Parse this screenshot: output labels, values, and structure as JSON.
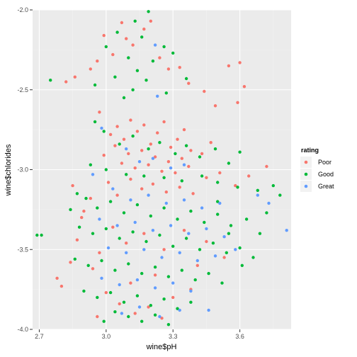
{
  "chart_data": {
    "type": "scatter",
    "xlabel": "wine$pH",
    "ylabel": "wine$chlorides",
    "xlim": [
      2.67,
      3.83
    ],
    "ylim": [
      -4.0,
      -2.0
    ],
    "x_ticks": [
      2.7,
      3.0,
      3.3,
      3.6
    ],
    "x_tick_labels": [
      "2.7",
      "3.0",
      "3.3",
      "3.6"
    ],
    "y_ticks": [
      -4.0,
      -3.5,
      -3.0,
      -2.5,
      -2.0
    ],
    "y_tick_labels": [
      "-4.0",
      "-3.5",
      "-3.0",
      "-2.5",
      "-2.0"
    ],
    "grid": true,
    "legend_placement": "right",
    "legend": {
      "title": "rating",
      "entries": [
        "Poor",
        "Good",
        "Great"
      ]
    },
    "colors": {
      "Poor": "#F8766D",
      "Good": "#00BA38",
      "Great": "#619CFF",
      "panel": "#EBEBEB",
      "grid_major": "#FFFFFF"
    },
    "series": [
      {
        "name": "Poor",
        "points": [
          [
            2.82,
            -2.45
          ],
          [
            2.86,
            -2.42
          ],
          [
            2.93,
            -2.37
          ],
          [
            2.96,
            -2.32
          ],
          [
            2.99,
            -2.16
          ],
          [
            3.03,
            -2.28
          ],
          [
            3.07,
            -2.08
          ],
          [
            3.09,
            -2.18
          ],
          [
            3.12,
            -2.22
          ],
          [
            3.17,
            -2.12
          ],
          [
            3.2,
            -2.07
          ],
          [
            3.24,
            -2.3
          ],
          [
            3.28,
            -2.37
          ],
          [
            3.33,
            -2.36
          ],
          [
            3.37,
            -2.46
          ],
          [
            3.44,
            -2.51
          ],
          [
            3.49,
            -2.6
          ],
          [
            3.55,
            -2.35
          ],
          [
            3.59,
            -2.58
          ],
          [
            3.62,
            -2.48
          ],
          [
            3.6,
            -2.33
          ],
          [
            2.97,
            -2.64
          ],
          [
            3.02,
            -2.78
          ],
          [
            3.05,
            -2.73
          ],
          [
            3.08,
            -2.81
          ],
          [
            3.11,
            -2.69
          ],
          [
            3.14,
            -2.76
          ],
          [
            3.17,
            -2.72
          ],
          [
            3.2,
            -2.84
          ],
          [
            3.23,
            -2.77
          ],
          [
            3.26,
            -2.7
          ],
          [
            3.29,
            -2.86
          ],
          [
            3.32,
            -2.81
          ],
          [
            3.35,
            -2.75
          ],
          [
            3.38,
            -2.88
          ],
          [
            3.04,
            -2.85
          ],
          [
            3.1,
            -2.9
          ],
          [
            3.16,
            -2.88
          ],
          [
            3.22,
            -2.92
          ],
          [
            3.28,
            -2.95
          ],
          [
            3.34,
            -2.93
          ],
          [
            2.99,
            -2.91
          ],
          [
            3.07,
            -2.96
          ],
          [
            3.13,
            -2.99
          ],
          [
            3.19,
            -2.97
          ],
          [
            3.25,
            -3.01
          ],
          [
            3.31,
            -3.02
          ],
          [
            3.37,
            -2.98
          ],
          [
            3.43,
            -2.9
          ],
          [
            3.47,
            -2.83
          ],
          [
            2.85,
            -3.1
          ],
          [
            2.9,
            -3.26
          ],
          [
            2.93,
            -3.18
          ],
          [
            3.01,
            -3.08
          ],
          [
            3.05,
            -3.16
          ],
          [
            3.11,
            -3.06
          ],
          [
            3.16,
            -3.12
          ],
          [
            3.21,
            -3.09
          ],
          [
            3.27,
            -3.14
          ],
          [
            3.33,
            -3.11
          ],
          [
            3.39,
            -3.15
          ],
          [
            3.45,
            -3.05
          ],
          [
            3.51,
            -3.02
          ],
          [
            3.58,
            -3.1
          ],
          [
            3.64,
            -3.04
          ],
          [
            3.72,
            -2.98
          ],
          [
            2.78,
            -3.68
          ],
          [
            2.8,
            -3.73
          ],
          [
            2.84,
            -3.58
          ],
          [
            2.87,
            -3.44
          ],
          [
            2.89,
            -3.3
          ],
          [
            2.94,
            -3.62
          ],
          [
            2.97,
            -3.52
          ],
          [
            3.03,
            -3.36
          ],
          [
            3.09,
            -3.46
          ],
          [
            3.17,
            -3.4
          ],
          [
            3.26,
            -3.5
          ],
          [
            3.35,
            -3.38
          ],
          [
            3.45,
            -3.45
          ],
          [
            3.53,
            -3.55
          ],
          [
            3.41,
            -3.6
          ],
          [
            3.0,
            -3.77
          ],
          [
            3.06,
            -3.84
          ],
          [
            3.13,
            -3.9
          ],
          [
            3.19,
            -3.86
          ],
          [
            3.25,
            -3.93
          ],
          [
            3.3,
            -3.8
          ],
          [
            2.96,
            -3.92
          ],
          [
            3.11,
            -3.71
          ],
          [
            3.22,
            -3.66
          ],
          [
            3.38,
            -3.75
          ]
        ]
      },
      {
        "name": "Good",
        "points": [
          [
            2.75,
            -2.44
          ],
          [
            2.71,
            -3.41
          ],
          [
            2.69,
            -3.41
          ],
          [
            3.0,
            -2.23
          ],
          [
            3.05,
            -2.14
          ],
          [
            3.1,
            -2.3
          ],
          [
            3.13,
            -2.07
          ],
          [
            3.16,
            -2.17
          ],
          [
            3.19,
            -2.01
          ],
          [
            3.26,
            -2.23
          ],
          [
            3.21,
            -2.32
          ],
          [
            3.14,
            -2.38
          ],
          [
            3.04,
            -2.42
          ],
          [
            3.3,
            -2.27
          ],
          [
            3.12,
            -2.5
          ],
          [
            2.95,
            -2.47
          ],
          [
            3.36,
            -2.43
          ],
          [
            3.18,
            -2.44
          ],
          [
            3.08,
            -2.55
          ],
          [
            3.27,
            -2.52
          ],
          [
            2.95,
            -2.7
          ],
          [
            2.99,
            -2.76
          ],
          [
            3.06,
            -2.84
          ],
          [
            3.12,
            -2.79
          ],
          [
            3.19,
            -2.87
          ],
          [
            3.24,
            -2.83
          ],
          [
            3.31,
            -2.9
          ],
          [
            3.36,
            -2.85
          ],
          [
            3.42,
            -2.92
          ],
          [
            3.49,
            -2.87
          ],
          [
            3.55,
            -2.96
          ],
          [
            3.6,
            -2.89
          ],
          [
            2.93,
            -2.97
          ],
          [
            3.0,
            -3.0
          ],
          [
            3.09,
            -3.03
          ],
          [
            3.17,
            -3.04
          ],
          [
            3.26,
            -3.05
          ],
          [
            3.34,
            -3.07
          ],
          [
            3.43,
            -3.04
          ],
          [
            3.5,
            -3.08
          ],
          [
            3.59,
            -3.11
          ],
          [
            3.68,
            -3.13
          ],
          [
            3.75,
            -3.1
          ],
          [
            2.91,
            -3.18
          ],
          [
            2.96,
            -3.24
          ],
          [
            3.02,
            -3.2
          ],
          [
            3.08,
            -3.27
          ],
          [
            3.14,
            -3.22
          ],
          [
            3.2,
            -3.29
          ],
          [
            3.26,
            -3.24
          ],
          [
            3.32,
            -3.31
          ],
          [
            3.38,
            -3.26
          ],
          [
            3.44,
            -3.33
          ],
          [
            3.5,
            -3.28
          ],
          [
            3.56,
            -3.35
          ],
          [
            3.63,
            -3.31
          ],
          [
            2.88,
            -3.36
          ],
          [
            2.94,
            -3.4
          ],
          [
            3.0,
            -3.37
          ],
          [
            3.06,
            -3.43
          ],
          [
            3.12,
            -3.39
          ],
          [
            3.18,
            -3.45
          ],
          [
            3.24,
            -3.41
          ],
          [
            3.3,
            -3.48
          ],
          [
            3.36,
            -3.43
          ],
          [
            3.42,
            -3.5
          ],
          [
            3.48,
            -3.46
          ],
          [
            3.54,
            -3.52
          ],
          [
            3.6,
            -3.49
          ],
          [
            3.66,
            -3.55
          ],
          [
            2.86,
            -3.56
          ],
          [
            2.92,
            -3.6
          ],
          [
            2.98,
            -3.57
          ],
          [
            3.04,
            -3.63
          ],
          [
            3.1,
            -3.59
          ],
          [
            3.16,
            -3.65
          ],
          [
            3.22,
            -3.61
          ],
          [
            3.28,
            -3.67
          ],
          [
            3.34,
            -3.63
          ],
          [
            3.4,
            -3.69
          ],
          [
            3.46,
            -3.65
          ],
          [
            3.52,
            -3.71
          ],
          [
            2.9,
            -3.76
          ],
          [
            2.96,
            -3.8
          ],
          [
            3.02,
            -3.77
          ],
          [
            3.08,
            -3.83
          ],
          [
            3.14,
            -3.79
          ],
          [
            3.2,
            -3.85
          ],
          [
            3.26,
            -3.81
          ],
          [
            3.32,
            -3.87
          ],
          [
            3.38,
            -3.83
          ],
          [
            3.04,
            -3.89
          ],
          [
            3.1,
            -3.92
          ],
          [
            3.16,
            -3.95
          ],
          [
            3.22,
            -3.91
          ],
          [
            3.28,
            -3.97
          ],
          [
            2.99,
            -3.95
          ],
          [
            2.84,
            -3.25
          ],
          [
            2.87,
            -3.15
          ],
          [
            3.5,
            -3.2
          ],
          [
            3.55,
            -3.4
          ],
          [
            3.61,
            -3.6
          ],
          [
            3.69,
            -3.4
          ],
          [
            3.72,
            -3.27
          ],
          [
            3.78,
            -3.16
          ]
        ]
      },
      {
        "name": "Great",
        "points": [
          [
            2.98,
            -2.74
          ],
          [
            3.22,
            -2.22
          ],
          [
            3.23,
            -2.54
          ],
          [
            3.09,
            -2.87
          ],
          [
            3.15,
            -2.95
          ],
          [
            3.21,
            -2.93
          ],
          [
            3.29,
            -2.99
          ],
          [
            3.35,
            -2.97
          ],
          [
            2.94,
            -3.03
          ],
          [
            3.03,
            -3.12
          ],
          [
            3.11,
            -3.19
          ],
          [
            3.19,
            -3.16
          ],
          [
            3.27,
            -3.21
          ],
          [
            3.35,
            -3.19
          ],
          [
            3.43,
            -3.24
          ],
          [
            3.51,
            -3.21
          ],
          [
            2.97,
            -3.31
          ],
          [
            3.05,
            -3.35
          ],
          [
            3.13,
            -3.33
          ],
          [
            3.21,
            -3.38
          ],
          [
            3.29,
            -3.35
          ],
          [
            3.37,
            -3.4
          ],
          [
            3.45,
            -3.37
          ],
          [
            3.53,
            -3.42
          ],
          [
            3.01,
            -3.49
          ],
          [
            3.09,
            -3.52
          ],
          [
            3.17,
            -3.5
          ],
          [
            3.25,
            -3.55
          ],
          [
            3.33,
            -3.52
          ],
          [
            3.41,
            -3.57
          ],
          [
            3.49,
            -3.54
          ],
          [
            2.98,
            -3.68
          ],
          [
            3.06,
            -3.72
          ],
          [
            3.14,
            -3.69
          ],
          [
            3.22,
            -3.74
          ],
          [
            3.3,
            -3.71
          ],
          [
            3.38,
            -3.76
          ],
          [
            3.07,
            -3.9
          ],
          [
            3.15,
            -3.86
          ],
          [
            3.24,
            -3.92
          ],
          [
            3.33,
            -3.88
          ],
          [
            3.68,
            -3.16
          ],
          [
            3.73,
            -3.21
          ],
          [
            3.81,
            -3.38
          ],
          [
            3.58,
            -3.5
          ],
          [
            3.46,
            -3.88
          ]
        ]
      }
    ]
  }
}
